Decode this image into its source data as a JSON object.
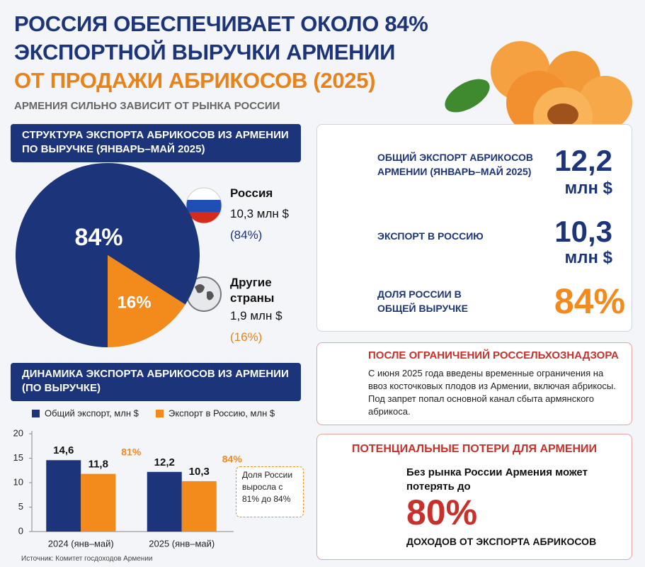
{
  "header": {
    "title_line1": "РОССИЯ ОБЕСПЕЧИВАЕТ ОКОЛО 84%",
    "title_line2": "ЭКСПОРТНОЙ ВЫРУЧКИ АРМЕНИИ",
    "title_line3": "ОТ ПРОДАЖИ АБРИКОСОВ (2025)",
    "subtitle": "АРМЕНИЯ СИЛЬНО ЗАВИСИТ ОТ РЫНКА РОССИИ"
  },
  "chart_data": [
    {
      "type": "pie",
      "title": "СТРУКТУРА ЭКСПОРТА АБРИКОСОВ ИЗ АРМЕНИИ ПО ВЫРУЧКЕ (ЯНВАРЬ–МАЙ 2025)",
      "categories": [
        "Россия",
        "Другие страны"
      ],
      "values": [
        84,
        16
      ],
      "value_labels": [
        "84%",
        "16%"
      ],
      "colors": [
        "#1c3479",
        "#f28a1c"
      ],
      "legend_amounts": [
        "10,3 млн $",
        "1,9 млн $"
      ],
      "legend_shares": [
        "(84%)",
        "(16%)"
      ]
    },
    {
      "type": "bar",
      "title": "ДИНАМИКА ЭКСПОРТА АБРИКОСОВ ИЗ АРМЕНИИ (ПО ВЫРУЧКЕ)",
      "categories": [
        "2024 (янв–май)",
        "2025 (янв–май)"
      ],
      "series": [
        {
          "name": "Общий экспорт, млн $",
          "color": "#1c3479",
          "values": [
            14.6,
            12.2
          ],
          "value_labels": [
            "14,6",
            "12,2"
          ]
        },
        {
          "name": "Экспорт в Россию, млн $",
          "color": "#f28a1c",
          "values": [
            11.8,
            10.3
          ],
          "value_labels": [
            "11,8",
            "10,3"
          ]
        }
      ],
      "share_labels": [
        "81%",
        "84%"
      ],
      "annotation": "Доля России выросла с 81% до 84%",
      "ylim": [
        0,
        20
      ],
      "yticks": [
        0,
        5,
        10,
        15,
        20
      ]
    }
  ],
  "stats": [
    {
      "label": "ОБЩИЙ ЭКСПОРТ АБРИКОСОВ АРМЕНИИ (ЯНВАРЬ–МАЙ 2025)",
      "value": "12,2",
      "unit": "млн $"
    },
    {
      "label": "ЭКСПОРТ В РОССИЮ",
      "value": "10,3",
      "unit": "млн $"
    },
    {
      "label": "ДОЛЯ РОССИИ В ОБЩЕЙ ВЫРУЧКЕ",
      "value": "84%"
    }
  ],
  "warning": {
    "title": "ПОСЛЕ ОГРАНИЧЕНИЙ РОССЕЛЬХОЗНАДЗОРА",
    "text": "С июня 2025 года введены временные ограничения на ввоз косточковых плодов из Армении, включая абрикосы. Под запрет попал основной канал сбыта армянского абрикоса."
  },
  "losses": {
    "title": "ПОТЕНЦИАЛЬНЫЕ ПОТЕРИ ДЛЯ АРМЕНИИ",
    "lead": "Без рынка России Армения может потерять до",
    "value": "80%",
    "caption": "ДОХОДОВ ОТ ЭКСПОРТА АБРИКОСОВ"
  },
  "source": "Источник: Комитет госдоходов Армении"
}
